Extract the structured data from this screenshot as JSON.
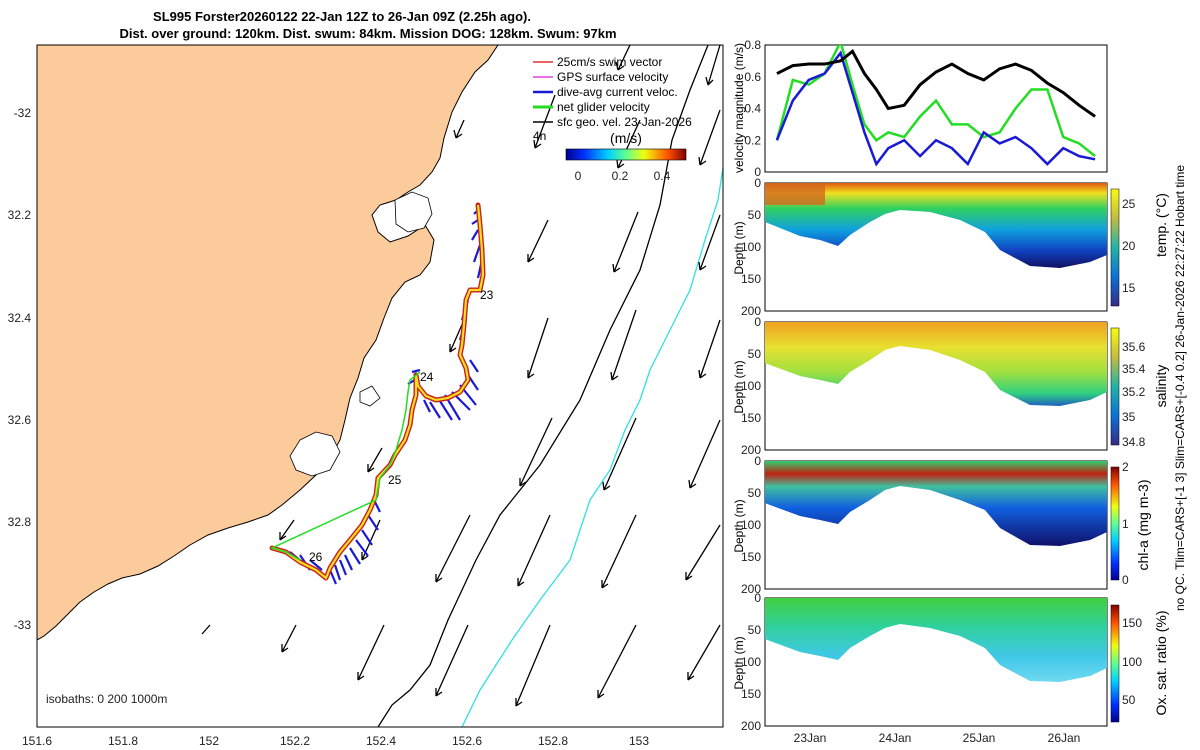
{
  "title_line1": "SL995 Forster20260122 22-Jan 12Z to 26-Jan 09Z (2.25h ago).",
  "title_line2": "Dist. over ground: 120km. Dist. swum: 84km. Mission DOG: 128km. Swum: 97km",
  "right_caption": "no QC. Tlim=CARS+[-1 3] Slim=CARS+[-0.4 0.2] 26-Jan-2026 22:27:22 Hobart time",
  "colors": {
    "land": "#fccb9c",
    "track_red": "#cc1f1f",
    "swim_vec": "#e03030",
    "gps": "#e040e0",
    "dive_avg": "#1a1ad6",
    "net": "#22dd22",
    "geo": "#000000",
    "isobath_200": "#000000",
    "isobath_1000": "#30e0e0"
  },
  "map": {
    "xticks": [
      "151.6",
      "151.8",
      "152",
      "152.2",
      "152.4",
      "152.6",
      "152.8",
      "153"
    ],
    "yticks": [
      "-32",
      "32.2",
      "32.4",
      "32.6",
      "32.8",
      "-33"
    ],
    "day_labels": [
      "23",
      "24",
      "25",
      "26"
    ],
    "legend": {
      "swim": "25cm/s swim vector",
      "gps": "GPS surface velocity",
      "dive": "dive-avg current veloc.",
      "net": "net glider velocity",
      "geo": "sfc geo. vel. 23-Jan-2026",
      "four_h": "4h",
      "units": "(m/s)",
      "cticks": [
        "0",
        "0.2",
        "0.4"
      ]
    },
    "isobaths_label": "isobaths: 0   200  1000m"
  },
  "chart_data": {
    "type": "line",
    "title": "",
    "ylabel": "velocity magnitude (m/s)",
    "ylim": [
      0,
      0.8
    ],
    "yticks": [
      "0",
      "0.2",
      "0.4",
      "0.6",
      "0.8"
    ],
    "x_days": [
      22.5,
      22.7,
      22.9,
      23.1,
      23.3,
      23.45,
      23.6,
      23.75,
      23.9,
      24.1,
      24.3,
      24.5,
      24.7,
      24.9,
      25.1,
      25.3,
      25.5,
      25.7,
      25.9,
      26.1,
      26.3,
      26.5
    ],
    "series": [
      {
        "name": "net glider velocity (black)",
        "color": "#000000",
        "values": [
          0.62,
          0.67,
          0.68,
          0.68,
          0.7,
          0.76,
          0.62,
          0.52,
          0.4,
          0.42,
          0.55,
          0.63,
          0.68,
          0.62,
          0.58,
          0.65,
          0.68,
          0.64,
          0.56,
          0.5,
          0.42,
          0.35
        ]
      },
      {
        "name": "surface (green)",
        "color": "#22dd22",
        "values": [
          0.2,
          0.58,
          0.55,
          0.62,
          0.82,
          0.55,
          0.3,
          0.2,
          0.25,
          0.22,
          0.35,
          0.45,
          0.3,
          0.3,
          0.22,
          0.25,
          0.4,
          0.52,
          0.52,
          0.22,
          0.18,
          0.1
        ]
      },
      {
        "name": "dive-avg current (blue)",
        "color": "#1a1ad6",
        "values": [
          0.2,
          0.45,
          0.58,
          0.62,
          0.75,
          0.5,
          0.25,
          0.05,
          0.15,
          0.2,
          0.1,
          0.2,
          0.15,
          0.05,
          0.25,
          0.18,
          0.22,
          0.15,
          0.05,
          0.15,
          0.1,
          0.08
        ]
      }
    ],
    "xticks": [
      "23Jan",
      "24Jan",
      "25Jan",
      "26Jan"
    ]
  },
  "panels": [
    {
      "ylabel": "Depth (m)",
      "yticks": [
        "0",
        "50",
        "100",
        "150",
        "200"
      ],
      "cb_label": "temp. (°C)",
      "cb_ticks": [
        "25",
        "20",
        "15"
      ]
    },
    {
      "ylabel": "Depth (m)",
      "yticks": [
        "0",
        "50",
        "100",
        "150",
        "200"
      ],
      "cb_label": "salinity",
      "cb_ticks": [
        "35.6",
        "35.4",
        "35.2",
        "35",
        "34.8"
      ]
    },
    {
      "ylabel": "Depth (m)",
      "yticks": [
        "0",
        "50",
        "100",
        "150",
        "200"
      ],
      "cb_label": "chl-a (mg m-3)",
      "cb_ticks": [
        "2",
        "1",
        "0"
      ]
    },
    {
      "ylabel": "Depth (m)",
      "yticks": [
        "0",
        "50",
        "100",
        "150",
        "200"
      ],
      "cb_label": "Ox. sat. ratio (%)",
      "cb_ticks": [
        "150",
        "100",
        "50"
      ]
    }
  ]
}
